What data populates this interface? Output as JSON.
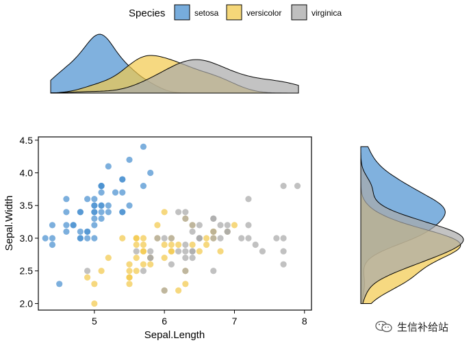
{
  "legend": {
    "title": "Species",
    "items": [
      {
        "label": "setosa",
        "color": "#4a90d0"
      },
      {
        "label": "versicolor",
        "color": "#f2c94c"
      },
      {
        "label": "virginica",
        "color": "#a9a9a9"
      }
    ]
  },
  "watermark": {
    "text": "生信补给站",
    "icon": "wechat-icon"
  },
  "chart_data": {
    "type": "scatter",
    "xlabel": "Sepal.Length",
    "ylabel": "Sepal.Width",
    "xlim": [
      4.2,
      8.1
    ],
    "ylim": [
      1.9,
      4.55
    ],
    "xticks": [
      5,
      6,
      7,
      8
    ],
    "yticks": [
      2.0,
      2.5,
      3.0,
      3.5,
      4.0,
      4.5
    ],
    "ytick_labels": [
      "2.0",
      "2.5",
      "3.0",
      "3.5",
      "4.0",
      "4.5"
    ],
    "grid": false,
    "legend_position": "top",
    "marginal_plots": "density",
    "series": [
      {
        "name": "setosa",
        "color": "#4a90d0",
        "points": [
          [
            5.1,
            3.5
          ],
          [
            4.9,
            3.0
          ],
          [
            4.7,
            3.2
          ],
          [
            4.6,
            3.1
          ],
          [
            5.0,
            3.6
          ],
          [
            5.4,
            3.9
          ],
          [
            4.6,
            3.4
          ],
          [
            5.0,
            3.4
          ],
          [
            4.4,
            2.9
          ],
          [
            4.9,
            3.1
          ],
          [
            5.4,
            3.7
          ],
          [
            4.8,
            3.4
          ],
          [
            4.8,
            3.0
          ],
          [
            4.3,
            3.0
          ],
          [
            5.8,
            4.0
          ],
          [
            5.7,
            4.4
          ],
          [
            5.4,
            3.9
          ],
          [
            5.1,
            3.5
          ],
          [
            5.7,
            3.8
          ],
          [
            5.1,
            3.8
          ],
          [
            5.4,
            3.4
          ],
          [
            5.1,
            3.7
          ],
          [
            4.6,
            3.6
          ],
          [
            5.1,
            3.3
          ],
          [
            4.8,
            3.4
          ],
          [
            5.0,
            3.0
          ],
          [
            5.0,
            3.4
          ],
          [
            5.2,
            3.5
          ],
          [
            5.2,
            3.4
          ],
          [
            4.7,
            3.2
          ],
          [
            4.8,
            3.1
          ],
          [
            5.4,
            3.4
          ],
          [
            5.2,
            4.1
          ],
          [
            5.5,
            4.2
          ],
          [
            4.9,
            3.1
          ],
          [
            5.0,
            3.2
          ],
          [
            5.5,
            3.5
          ],
          [
            4.9,
            3.6
          ],
          [
            4.4,
            3.0
          ],
          [
            5.1,
            3.4
          ],
          [
            5.0,
            3.5
          ],
          [
            4.5,
            2.3
          ],
          [
            4.4,
            3.2
          ],
          [
            5.0,
            3.5
          ],
          [
            5.1,
            3.8
          ],
          [
            4.8,
            3.0
          ],
          [
            5.1,
            3.8
          ],
          [
            4.6,
            3.2
          ],
          [
            5.3,
            3.7
          ],
          [
            5.0,
            3.3
          ]
        ]
      },
      {
        "name": "versicolor",
        "color": "#f2c94c",
        "points": [
          [
            7.0,
            3.2
          ],
          [
            6.4,
            3.2
          ],
          [
            6.9,
            3.1
          ],
          [
            5.5,
            2.3
          ],
          [
            6.5,
            2.8
          ],
          [
            5.7,
            2.8
          ],
          [
            6.3,
            3.3
          ],
          [
            4.9,
            2.4
          ],
          [
            6.6,
            2.9
          ],
          [
            5.2,
            2.7
          ],
          [
            5.0,
            2.0
          ],
          [
            5.9,
            3.0
          ],
          [
            6.0,
            2.2
          ],
          [
            6.1,
            2.9
          ],
          [
            5.6,
            2.9
          ],
          [
            6.7,
            3.1
          ],
          [
            5.6,
            3.0
          ],
          [
            5.8,
            2.7
          ],
          [
            6.2,
            2.2
          ],
          [
            5.6,
            2.5
          ],
          [
            5.9,
            3.2
          ],
          [
            6.1,
            2.8
          ],
          [
            6.3,
            2.5
          ],
          [
            6.1,
            2.8
          ],
          [
            6.4,
            2.9
          ],
          [
            6.6,
            3.0
          ],
          [
            6.8,
            2.8
          ],
          [
            6.7,
            3.0
          ],
          [
            6.0,
            2.9
          ],
          [
            5.7,
            2.6
          ],
          [
            5.5,
            2.4
          ],
          [
            5.5,
            2.4
          ],
          [
            5.8,
            2.7
          ],
          [
            6.0,
            2.7
          ],
          [
            5.4,
            3.0
          ],
          [
            6.0,
            3.4
          ],
          [
            6.7,
            3.1
          ],
          [
            6.3,
            2.3
          ],
          [
            5.6,
            3.0
          ],
          [
            5.5,
            2.5
          ],
          [
            5.5,
            2.6
          ],
          [
            6.1,
            3.0
          ],
          [
            5.8,
            2.6
          ],
          [
            5.0,
            2.3
          ],
          [
            5.6,
            2.7
          ],
          [
            5.7,
            3.0
          ],
          [
            5.7,
            2.9
          ],
          [
            6.2,
            2.9
          ],
          [
            5.1,
            2.5
          ],
          [
            5.7,
            2.8
          ]
        ]
      },
      {
        "name": "virginica",
        "color": "#a9a9a9",
        "points": [
          [
            6.3,
            3.3
          ],
          [
            5.8,
            2.7
          ],
          [
            7.1,
            3.0
          ],
          [
            6.3,
            2.9
          ],
          [
            6.5,
            3.0
          ],
          [
            7.6,
            3.0
          ],
          [
            4.9,
            2.5
          ],
          [
            7.3,
            2.9
          ],
          [
            6.7,
            2.5
          ],
          [
            7.2,
            3.6
          ],
          [
            6.5,
            3.2
          ],
          [
            6.4,
            2.7
          ],
          [
            6.8,
            3.0
          ],
          [
            5.7,
            2.5
          ],
          [
            5.8,
            2.8
          ],
          [
            6.4,
            3.2
          ],
          [
            6.5,
            3.0
          ],
          [
            7.7,
            3.8
          ],
          [
            7.7,
            2.6
          ],
          [
            6.0,
            2.2
          ],
          [
            6.9,
            3.2
          ],
          [
            5.6,
            2.8
          ],
          [
            7.7,
            2.8
          ],
          [
            6.3,
            2.7
          ],
          [
            6.7,
            3.3
          ],
          [
            7.2,
            3.2
          ],
          [
            6.2,
            2.8
          ],
          [
            6.1,
            3.0
          ],
          [
            6.4,
            2.8
          ],
          [
            7.2,
            3.0
          ],
          [
            7.4,
            2.8
          ],
          [
            7.9,
            3.8
          ],
          [
            6.4,
            2.8
          ],
          [
            6.3,
            2.8
          ],
          [
            6.1,
            2.6
          ],
          [
            7.7,
            3.0
          ],
          [
            6.3,
            3.4
          ],
          [
            6.4,
            3.1
          ],
          [
            6.0,
            3.0
          ],
          [
            6.9,
            3.1
          ],
          [
            6.7,
            3.1
          ],
          [
            6.9,
            3.1
          ],
          [
            5.8,
            2.7
          ],
          [
            6.8,
            3.2
          ],
          [
            6.7,
            3.3
          ],
          [
            6.7,
            3.0
          ],
          [
            6.3,
            2.5
          ],
          [
            6.5,
            3.0
          ],
          [
            6.2,
            3.4
          ],
          [
            5.9,
            3.0
          ]
        ]
      }
    ]
  }
}
